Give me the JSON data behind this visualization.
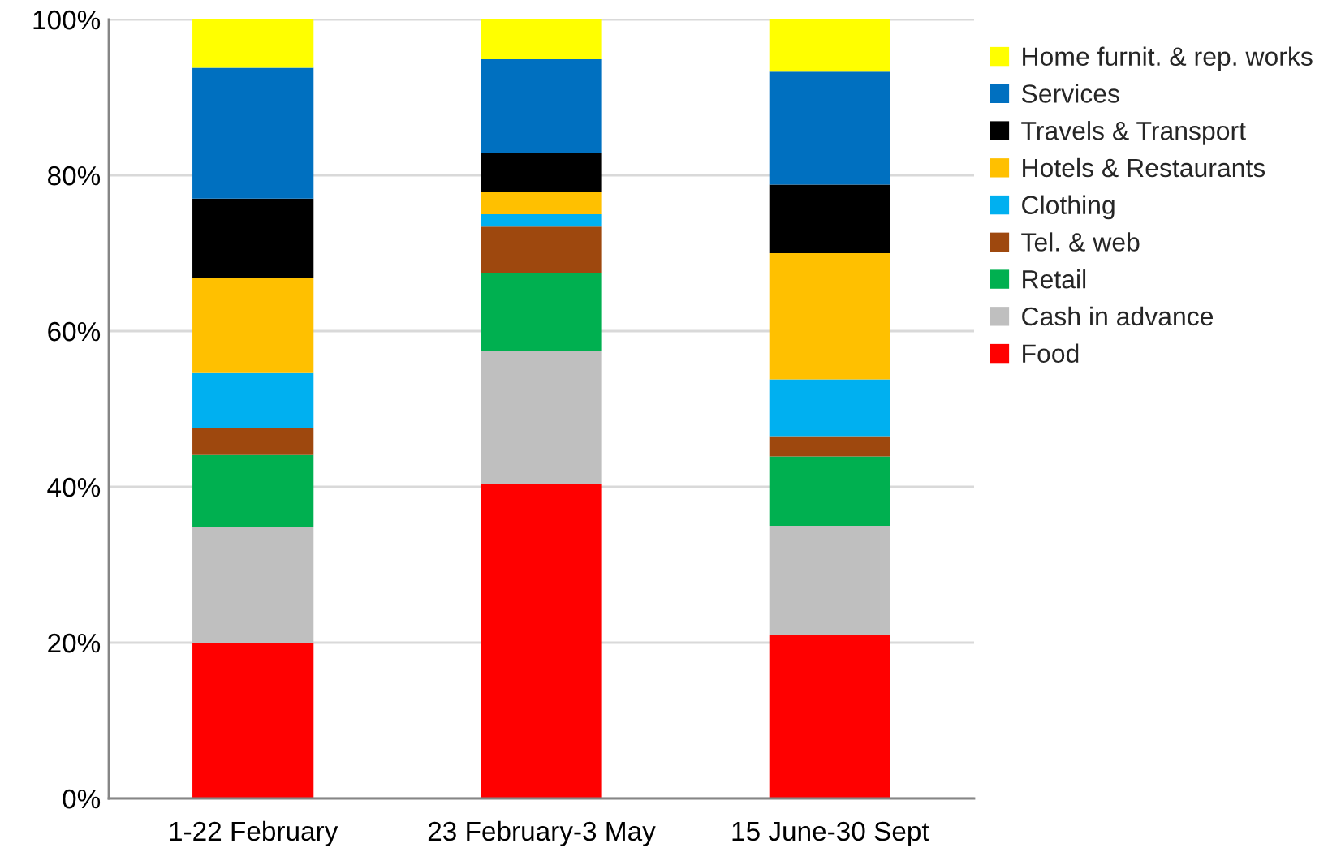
{
  "chart_data": {
    "type": "bar",
    "stacked": true,
    "categories": [
      "1-22 February",
      "23 February-3 May",
      "15 June-30 Sept"
    ],
    "series": [
      {
        "name": "Food",
        "color": "#ff0000",
        "values": [
          20.0,
          40.4,
          21.0
        ]
      },
      {
        "name": "Cash in advance",
        "color": "#bfbfbf",
        "values": [
          14.8,
          17.0,
          14.0
        ]
      },
      {
        "name": "Retail",
        "color": "#00b050",
        "values": [
          9.3,
          10.0,
          8.9
        ]
      },
      {
        "name": "Tel. & web",
        "color": "#9e480e",
        "values": [
          3.5,
          6.0,
          2.6
        ]
      },
      {
        "name": "Clothing",
        "color": "#00b0f0",
        "values": [
          7.0,
          1.6,
          7.3
        ]
      },
      {
        "name": "Hotels & Restaurants",
        "color": "#ffc000",
        "values": [
          12.2,
          2.8,
          16.2
        ]
      },
      {
        "name": "Travels & Transport",
        "color": "#000000",
        "values": [
          10.2,
          5.0,
          8.8
        ]
      },
      {
        "name": "Services",
        "color": "#0070c0",
        "values": [
          16.8,
          12.1,
          14.5
        ]
      },
      {
        "name": "Home furnit. & rep. works",
        "color": "#ffff00",
        "values": [
          6.2,
          5.1,
          6.7
        ]
      }
    ],
    "ylim": [
      0,
      100
    ],
    "yticks": [
      {
        "value": 0,
        "label": "0%"
      },
      {
        "value": 20,
        "label": "20%"
      },
      {
        "value": 40,
        "label": "40%"
      },
      {
        "value": 60,
        "label": "60%"
      },
      {
        "value": 80,
        "label": "80%"
      },
      {
        "value": 100,
        "label": "100%"
      }
    ],
    "grid": "y",
    "legend": "top right"
  }
}
